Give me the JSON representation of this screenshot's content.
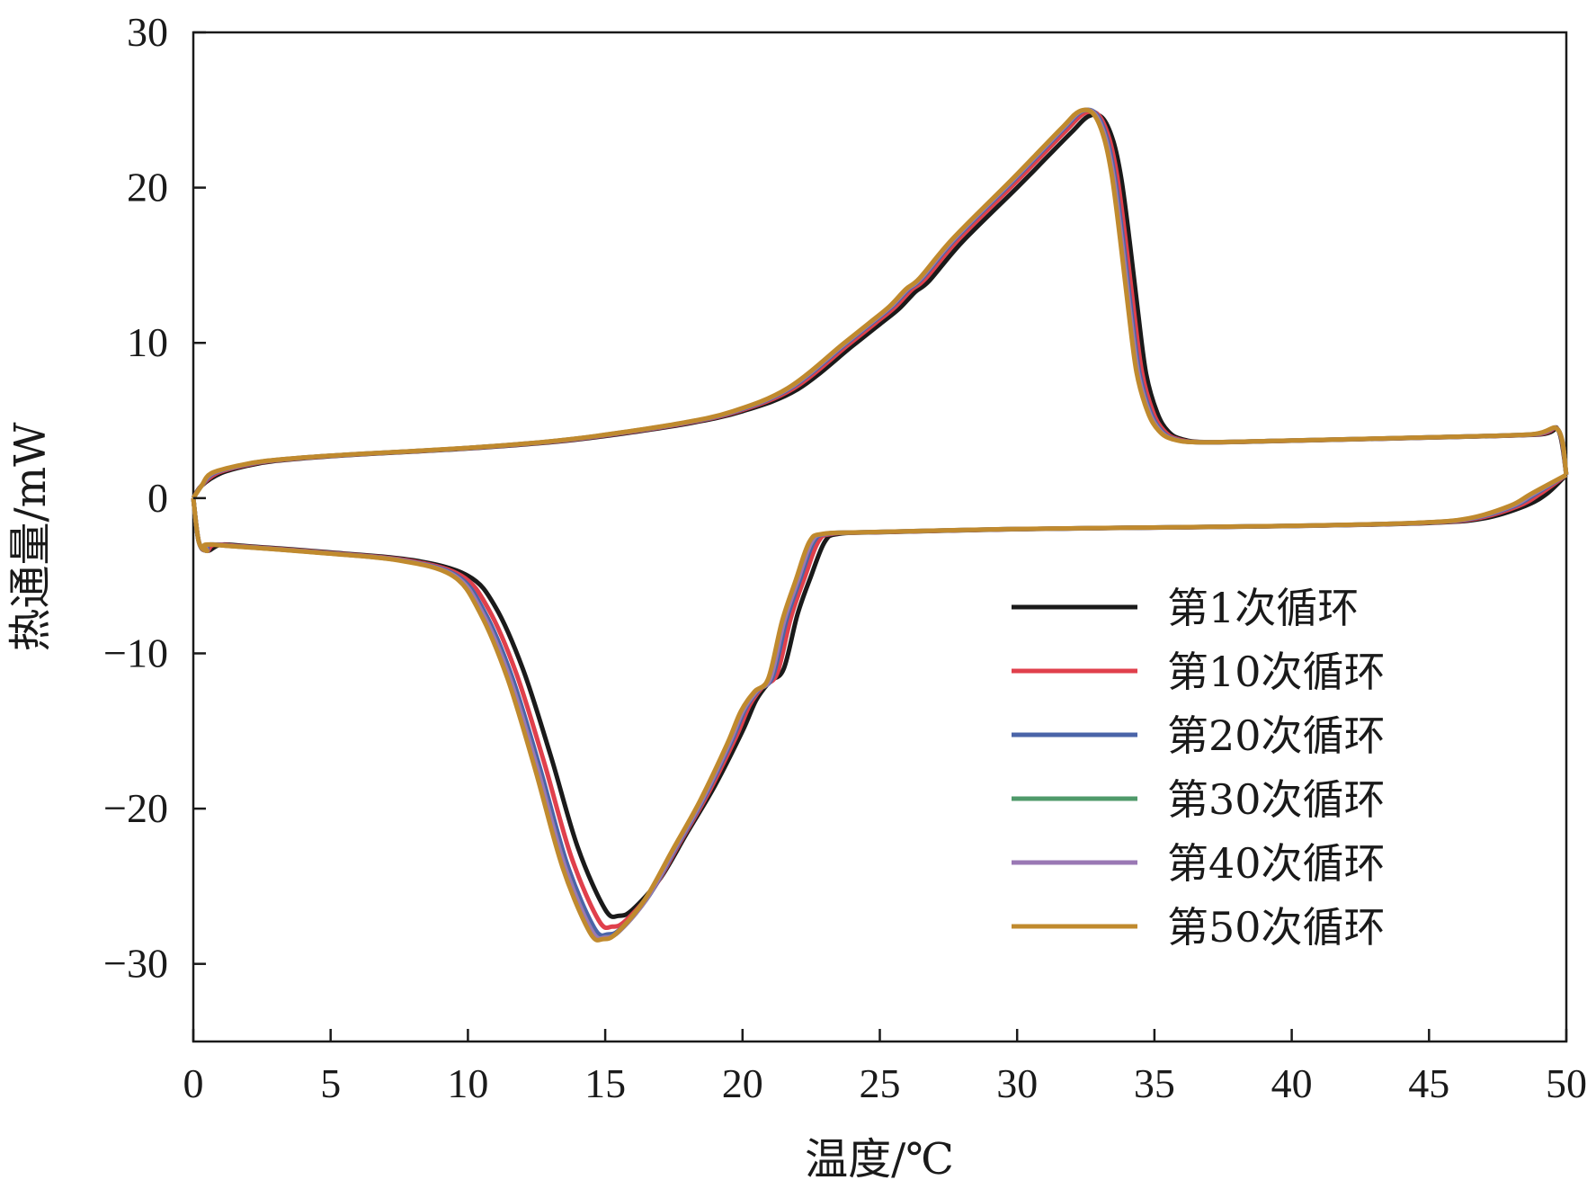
{
  "chart_data": {
    "type": "line",
    "xlabel": "温度/℃",
    "ylabel": "热通量/mW",
    "xlim": [
      0,
      50
    ],
    "ylim": [
      -35,
      30
    ],
    "xticks": [
      0,
      5,
      10,
      15,
      20,
      25,
      30,
      35,
      40,
      45,
      50
    ],
    "yticks": [
      30,
      20,
      10,
      0,
      -10,
      -20,
      -30
    ],
    "ytick_labels": [
      "30",
      "20",
      "10",
      "0",
      "−10",
      "−20",
      "−30"
    ],
    "grid": false,
    "legend_position": "bottom-right",
    "colors": [
      "#1a1a1a",
      "#e0404c",
      "#4a64a8",
      "#4f9a6a",
      "#9a78b4",
      "#c08a2e"
    ],
    "series": [
      {
        "name": "第1次循环",
        "dx": 0.0,
        "upper_peak": 24.6,
        "lower_peak": -26.9,
        "color": "#1a1a1a"
      },
      {
        "name": "第10次循环",
        "dx": -0.15,
        "upper_peak": 24.8,
        "lower_peak": -27.6,
        "color": "#e0404c"
      },
      {
        "name": "第20次循环",
        "dx": -0.25,
        "upper_peak": 24.9,
        "lower_peak": -28.1,
        "color": "#4a64a8"
      },
      {
        "name": "第30次循环",
        "dx": -0.3,
        "upper_peak": 24.9,
        "lower_peak": -28.3,
        "color": "#4f9a6a"
      },
      {
        "name": "第40次循环",
        "dx": -0.3,
        "upper_peak": 24.9,
        "lower_peak": -28.3,
        "color": "#9a78b4"
      },
      {
        "name": "第50次循环",
        "dx": -0.35,
        "upper_peak": 24.9,
        "lower_peak": -28.4,
        "color": "#c08a2e"
      }
    ],
    "upper_curve": {
      "x": [
        0,
        0.3,
        1,
        2,
        3,
        5,
        8,
        10,
        13,
        15,
        18,
        20,
        22,
        24,
        25,
        25.7,
        26.3,
        26.8,
        28,
        30,
        31,
        32,
        32.6,
        33.1,
        33.5,
        33.8,
        34.1,
        34.4,
        34.7,
        35.1,
        35.5,
        36,
        37,
        40,
        45,
        49,
        49.7,
        50
      ],
      "y": [
        0,
        0.8,
        1.6,
        2.1,
        2.4,
        2.7,
        3.0,
        3.2,
        3.6,
        4.0,
        4.8,
        5.6,
        7.0,
        9.8,
        11.2,
        12.2,
        13.3,
        14.0,
        16.5,
        20.0,
        21.8,
        23.6,
        24.6,
        24.5,
        23.0,
        20.5,
        16.5,
        12.0,
        8.0,
        5.5,
        4.3,
        3.8,
        3.6,
        3.7,
        3.9,
        4.1,
        4.4,
        1.5
      ]
    },
    "lower_curve": {
      "x": [
        0,
        0.2,
        0.5,
        1,
        2,
        5,
        8,
        10,
        11,
        12,
        13,
        14,
        15,
        15.5,
        16,
        17,
        18,
        19,
        20,
        20.5,
        21,
        21.5,
        22,
        22.5,
        23,
        23.5,
        25,
        30,
        35,
        40,
        45,
        47,
        48.5,
        49.3,
        50
      ],
      "y": [
        0,
        -2.8,
        -3.4,
        -3.0,
        -3.1,
        -3.5,
        -4.0,
        -5.0,
        -7.0,
        -11.0,
        -16.5,
        -22.5,
        -26.5,
        -26.9,
        -26.5,
        -24.5,
        -21.5,
        -18.5,
        -15.0,
        -13.0,
        -11.8,
        -11.0,
        -7.5,
        -5.0,
        -2.8,
        -2.3,
        -2.2,
        -2.0,
        -1.9,
        -1.8,
        -1.6,
        -1.3,
        -0.5,
        0.3,
        1.5
      ]
    }
  }
}
